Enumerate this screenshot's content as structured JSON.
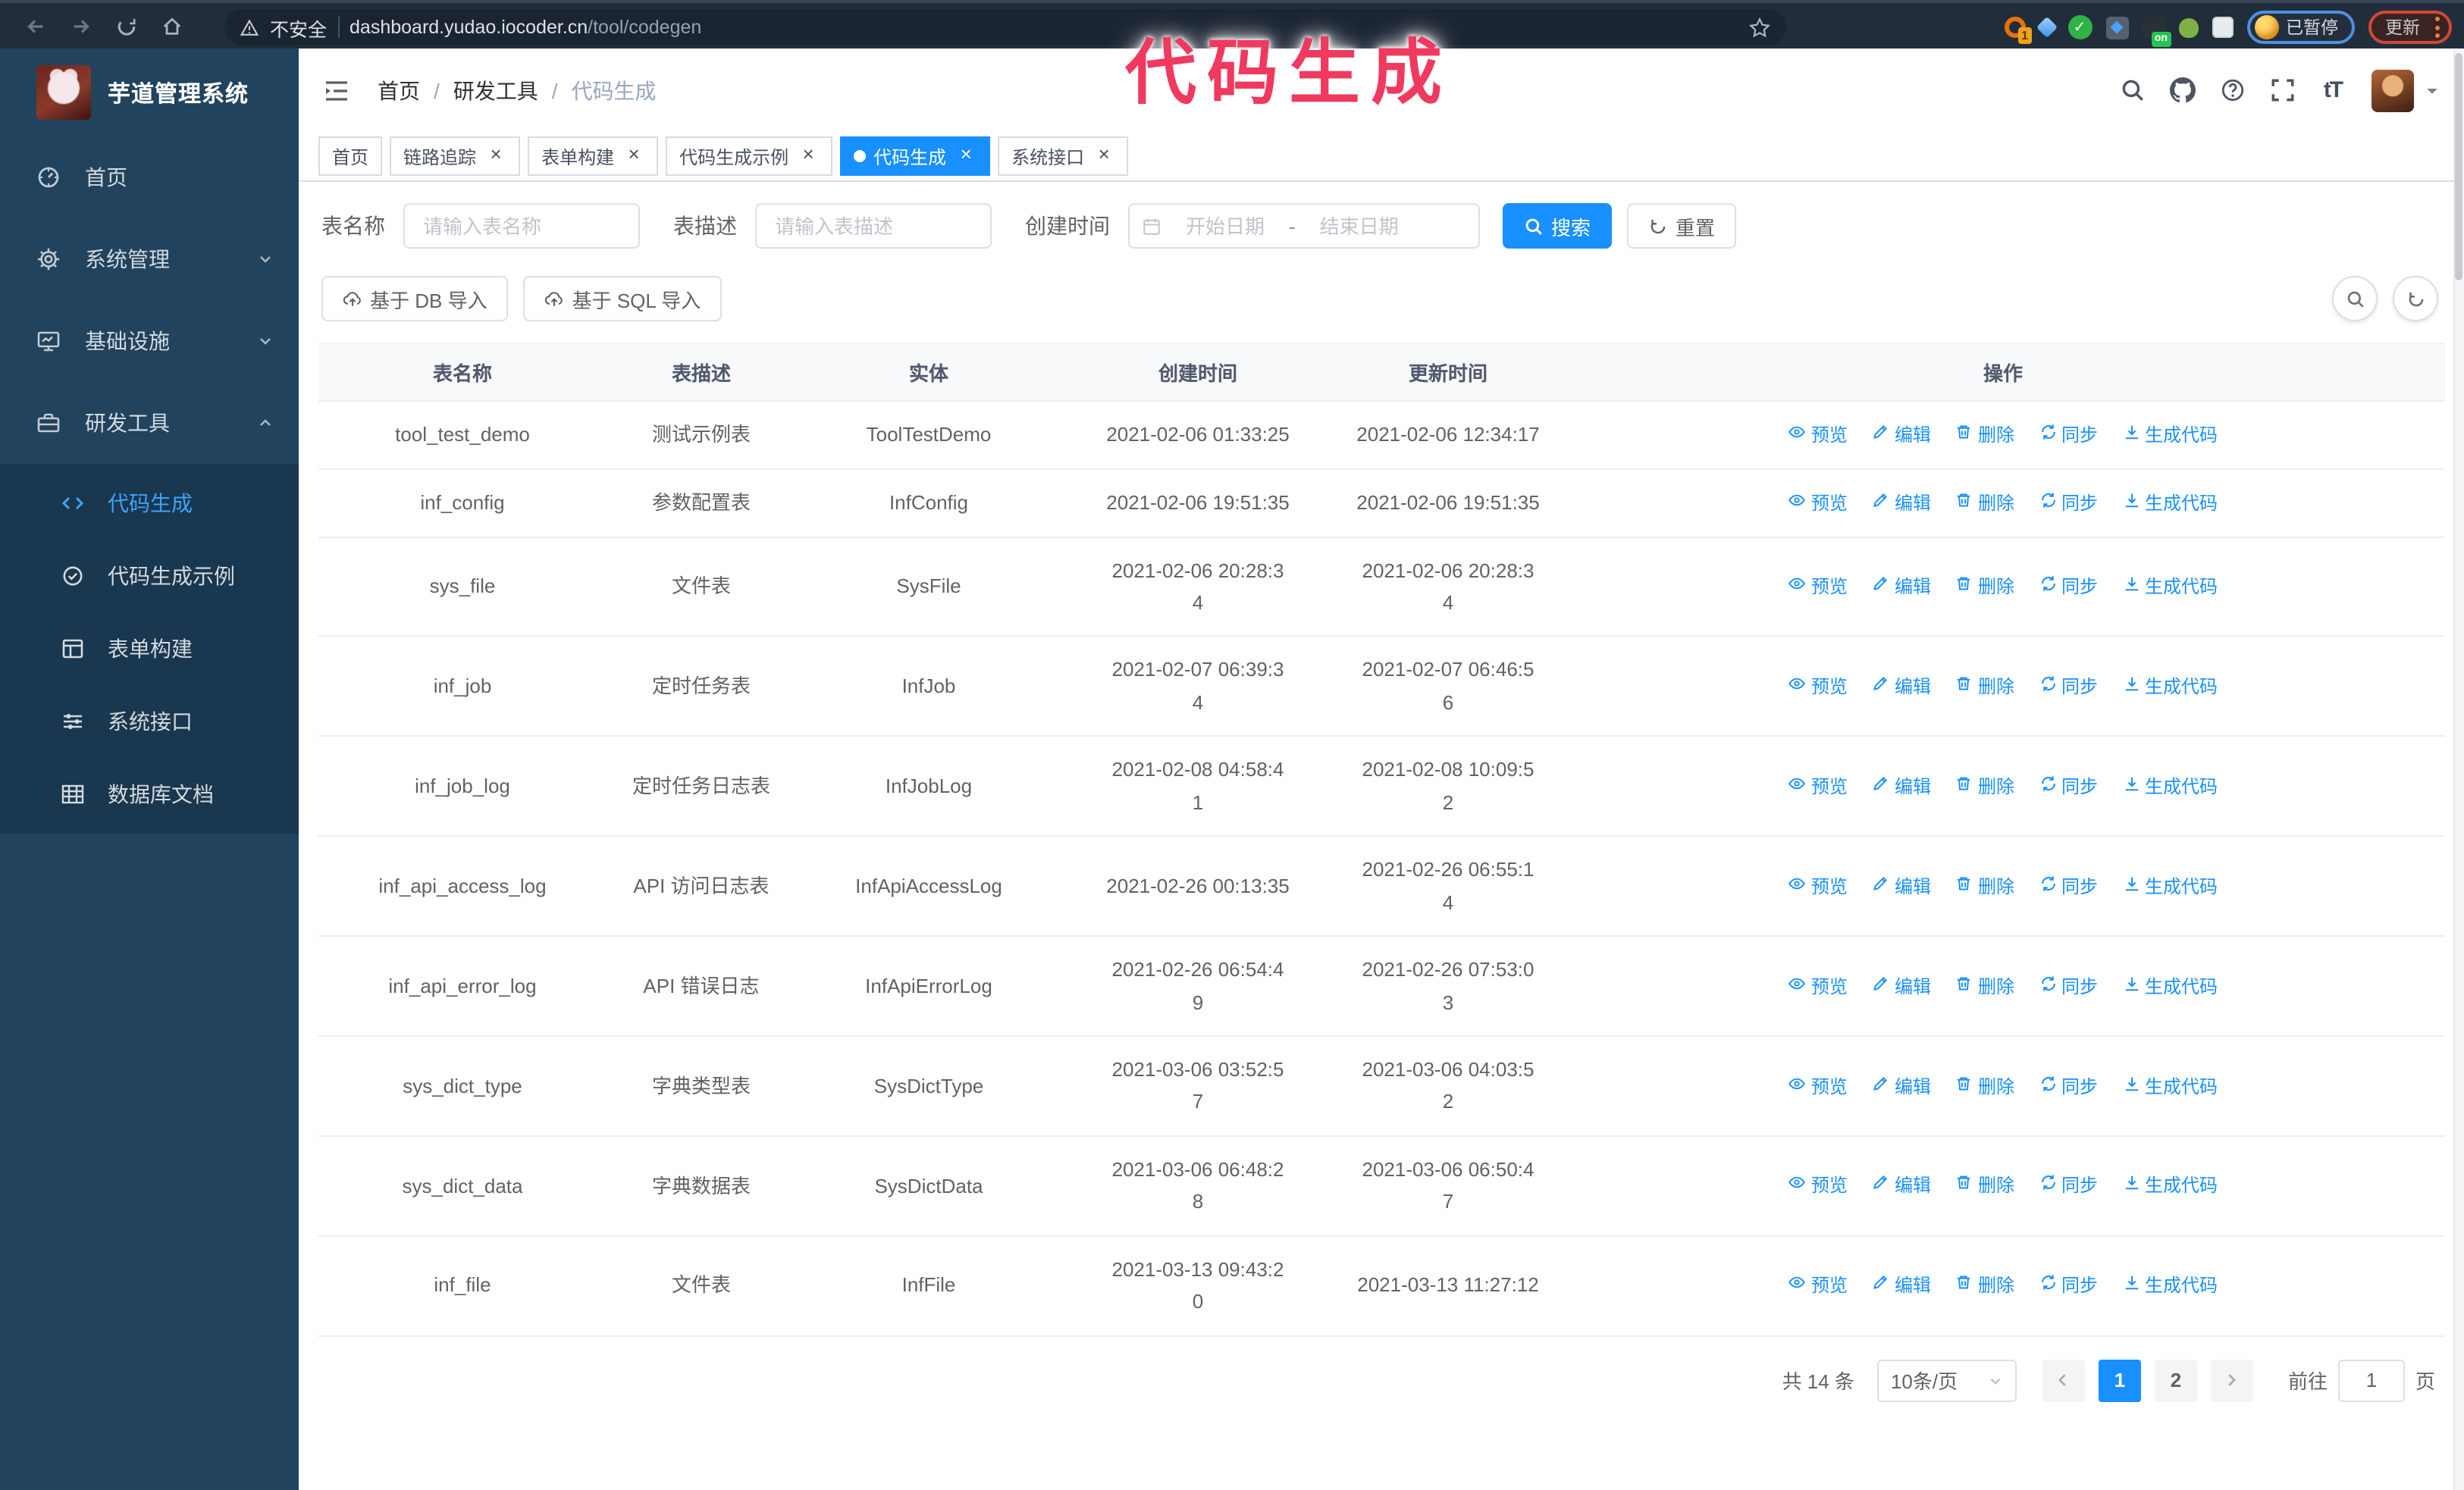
{
  "browser": {
    "insecure_label": "不安全",
    "url_host": "dashboard.yudao.iocoder.cn",
    "url_path": "/tool/codegen",
    "extension_badge_count": "1",
    "extension_on_badge": "on",
    "paused_badge_label": "已暂停",
    "update_button_label": "更新"
  },
  "watermark_text": "代码生成",
  "sidebar": {
    "logo_title": "芋道管理系统",
    "items": [
      {
        "label": "首页",
        "icon": "dashboard-icon",
        "chevron": ""
      },
      {
        "label": "系统管理",
        "icon": "gear-icon",
        "chevron": "down"
      },
      {
        "label": "基础设施",
        "icon": "monitor-icon",
        "chevron": "down"
      },
      {
        "label": "研发工具",
        "icon": "toolbox-icon",
        "chevron": "up",
        "expanded": true
      }
    ],
    "subitems": [
      {
        "label": "代码生成",
        "icon": "code-icon",
        "active": true
      },
      {
        "label": "代码生成示例",
        "icon": "badge-check-icon",
        "active": false
      },
      {
        "label": "表单构建",
        "icon": "form-icon",
        "active": false
      },
      {
        "label": "系统接口",
        "icon": "sliders-icon",
        "active": false
      },
      {
        "label": "数据库文档",
        "icon": "db-table-icon",
        "active": false
      }
    ]
  },
  "header": {
    "breadcrumb": [
      "首页",
      "研发工具",
      "代码生成"
    ],
    "breadcrumb_separator": "/",
    "font_size_icon_text": "tT"
  },
  "tabs": [
    {
      "label": "首页",
      "closable": false,
      "active": false
    },
    {
      "label": "链路追踪",
      "closable": true,
      "active": false
    },
    {
      "label": "表单构建",
      "closable": true,
      "active": false
    },
    {
      "label": "代码生成示例",
      "closable": true,
      "active": false
    },
    {
      "label": "代码生成",
      "closable": true,
      "active": true
    },
    {
      "label": "系统接口",
      "closable": true,
      "active": false
    }
  ],
  "filters": {
    "table_name_label": "表名称",
    "table_name_placeholder": "请输入表名称",
    "table_desc_label": "表描述",
    "table_desc_placeholder": "请输入表描述",
    "create_time_label": "创建时间",
    "date_start_placeholder": "开始日期",
    "date_separator": "-",
    "date_end_placeholder": "结束日期",
    "search_label": "搜索",
    "reset_label": "重置"
  },
  "import_buttons": {
    "db": "基于 DB 导入",
    "sql": "基于 SQL 导入"
  },
  "table": {
    "columns": [
      "表名称",
      "表描述",
      "实体",
      "创建时间",
      "更新时间",
      "操作"
    ],
    "actions": [
      "预览",
      "编辑",
      "删除",
      "同步",
      "生成代码"
    ],
    "rows": [
      {
        "name": "tool_test_demo",
        "desc": "测试示例表",
        "entity": "ToolTestDemo",
        "created": "2021-02-06 01:33:25",
        "updated": "2021-02-06 12:34:17"
      },
      {
        "name": "inf_config",
        "desc": "参数配置表",
        "entity": "InfConfig",
        "created": "2021-02-06 19:51:35",
        "updated": "2021-02-06 19:51:35"
      },
      {
        "name": "sys_file",
        "desc": "文件表",
        "entity": "SysFile",
        "created": "2021-02-06 20:28:3\n4",
        "updated": "2021-02-06 20:28:3\n4"
      },
      {
        "name": "inf_job",
        "desc": "定时任务表",
        "entity": "InfJob",
        "created": "2021-02-07 06:39:3\n4",
        "updated": "2021-02-07 06:46:5\n6"
      },
      {
        "name": "inf_job_log",
        "desc": "定时任务日志表",
        "entity": "InfJobLog",
        "created": "2021-02-08 04:58:4\n1",
        "updated": "2021-02-08 10:09:5\n2"
      },
      {
        "name": "inf_api_access_log",
        "desc": "API 访问日志表",
        "entity": "InfApiAccessLog",
        "created": "2021-02-26 00:13:35",
        "updated": "2021-02-26 06:55:1\n4"
      },
      {
        "name": "inf_api_error_log",
        "desc": "API 错误日志",
        "entity": "InfApiErrorLog",
        "created": "2021-02-26 06:54:4\n9",
        "updated": "2021-02-26 07:53:0\n3"
      },
      {
        "name": "sys_dict_type",
        "desc": "字典类型表",
        "entity": "SysDictType",
        "created": "2021-03-06 03:52:5\n7",
        "updated": "2021-03-06 04:03:5\n2"
      },
      {
        "name": "sys_dict_data",
        "desc": "字典数据表",
        "entity": "SysDictData",
        "created": "2021-03-06 06:48:2\n8",
        "updated": "2021-03-06 06:50:4\n7"
      },
      {
        "name": "inf_file",
        "desc": "文件表",
        "entity": "InfFile",
        "created": "2021-03-13 09:43:2\n0",
        "updated": "2021-03-13 11:27:12"
      }
    ]
  },
  "pagination": {
    "total_label": "共 14 条",
    "page_size": "10条/页",
    "pages": [
      "1",
      "2"
    ],
    "active_page": "1",
    "goto_label": "前往",
    "goto_value": "1",
    "goto_suffix": "页"
  },
  "colors": {
    "accent": "#1890ff",
    "watermark_pink": "#f0395f",
    "sidebar_bg": "#21435d",
    "submenu_bg": "#19374e",
    "update_badge_red": "#d14836",
    "paused_badge_blue": "#4e90e2"
  }
}
